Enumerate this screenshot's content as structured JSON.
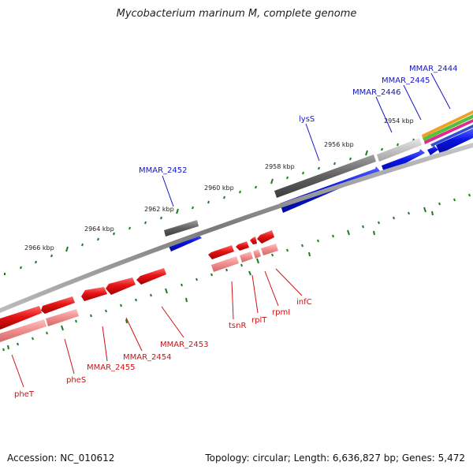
{
  "title": "Mycobacterium marinum M, complete genome",
  "footer": {
    "accession": "Accession: NC_010612",
    "topology": "Topology: circular; Length: 6,636,827 bp; Genes: 5,472"
  },
  "colors": {
    "backbone": "#8c8c8c",
    "tick": "#1e7b1e",
    "forward_gene": "#0a14e6",
    "forward_feature": "#646464",
    "reverse_gene": "#e61414",
    "reverse_feature": "#f08c8c",
    "forward_label": "#1414c8",
    "reverse_label": "#cc1414",
    "kbp_label": "#222222"
  },
  "kbp_labels": [
    "2954 kbp",
    "2956 kbp",
    "2958 kbp",
    "2960 kbp",
    "2962 kbp",
    "2964 kbp",
    "2966 kbp"
  ],
  "forward_labels": [
    "MMAR_2444",
    "MMAR_2445",
    "MMAR_2446",
    "lysS",
    "MMAR_2452"
  ],
  "reverse_labels": [
    "infC",
    "rpmI",
    "rplT",
    "tsnR",
    "MMAR_2453",
    "MMAR_2454",
    "MMAR_2455",
    "pheS",
    "pheT"
  ]
}
